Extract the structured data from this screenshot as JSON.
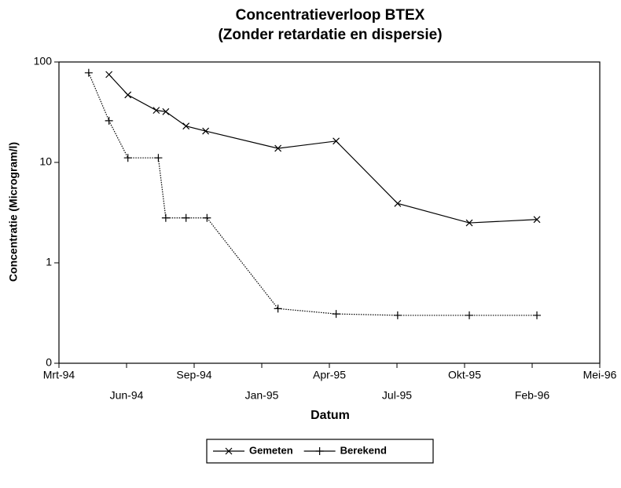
{
  "chart_data": {
    "type": "line",
    "title": "Concentratieverloop BTEX",
    "subtitle": "(Zonder retardatie en dispersie)",
    "x_label": "Datum",
    "y_label": "Concentratie (Microgram/l)",
    "log_y": true,
    "xlim": [
      0,
      8
    ],
    "xticks": [
      {
        "value": 0,
        "label": "Mrt-94"
      },
      {
        "value": 1,
        "label": "Jun-94"
      },
      {
        "value": 2,
        "label": "Sep-94"
      },
      {
        "value": 3,
        "label": "Jan-95"
      },
      {
        "value": 4,
        "label": "Apr-95"
      },
      {
        "value": 5,
        "label": "Jul-95"
      },
      {
        "value": 6,
        "label": "Okt-95"
      },
      {
        "value": 7,
        "label": "Feb-96"
      },
      {
        "value": 8,
        "label": "Mei-96"
      }
    ],
    "ylim": [
      0.1,
      100
    ],
    "yticks": [
      {
        "value": 0.1,
        "label": "0"
      },
      1,
      10,
      100
    ],
    "legend": "bottom",
    "series": [
      {
        "name": "Gemeten",
        "color": "#000000",
        "line_style": "solid",
        "marker": "x",
        "x": [
          0.74,
          1.02,
          1.44,
          1.58,
          1.88,
          2.17,
          3.24,
          4.1,
          5.01,
          6.07,
          7.07
        ],
        "values": [
          75,
          47,
          33,
          32,
          23,
          20.5,
          13.8,
          16.3,
          3.9,
          2.5,
          2.7
        ]
      },
      {
        "name": "Berekend",
        "color": "#000000",
        "line_style": "dotted",
        "marker": "+",
        "x": [
          0.44,
          0.74,
          1.02,
          1.47,
          1.58,
          1.88,
          2.19,
          3.24,
          4.1,
          5.01,
          6.07,
          7.07
        ],
        "values": [
          78,
          26,
          11.1,
          11.1,
          2.8,
          2.8,
          2.8,
          0.35,
          0.31,
          0.3,
          0.3,
          0.3
        ]
      }
    ]
  }
}
